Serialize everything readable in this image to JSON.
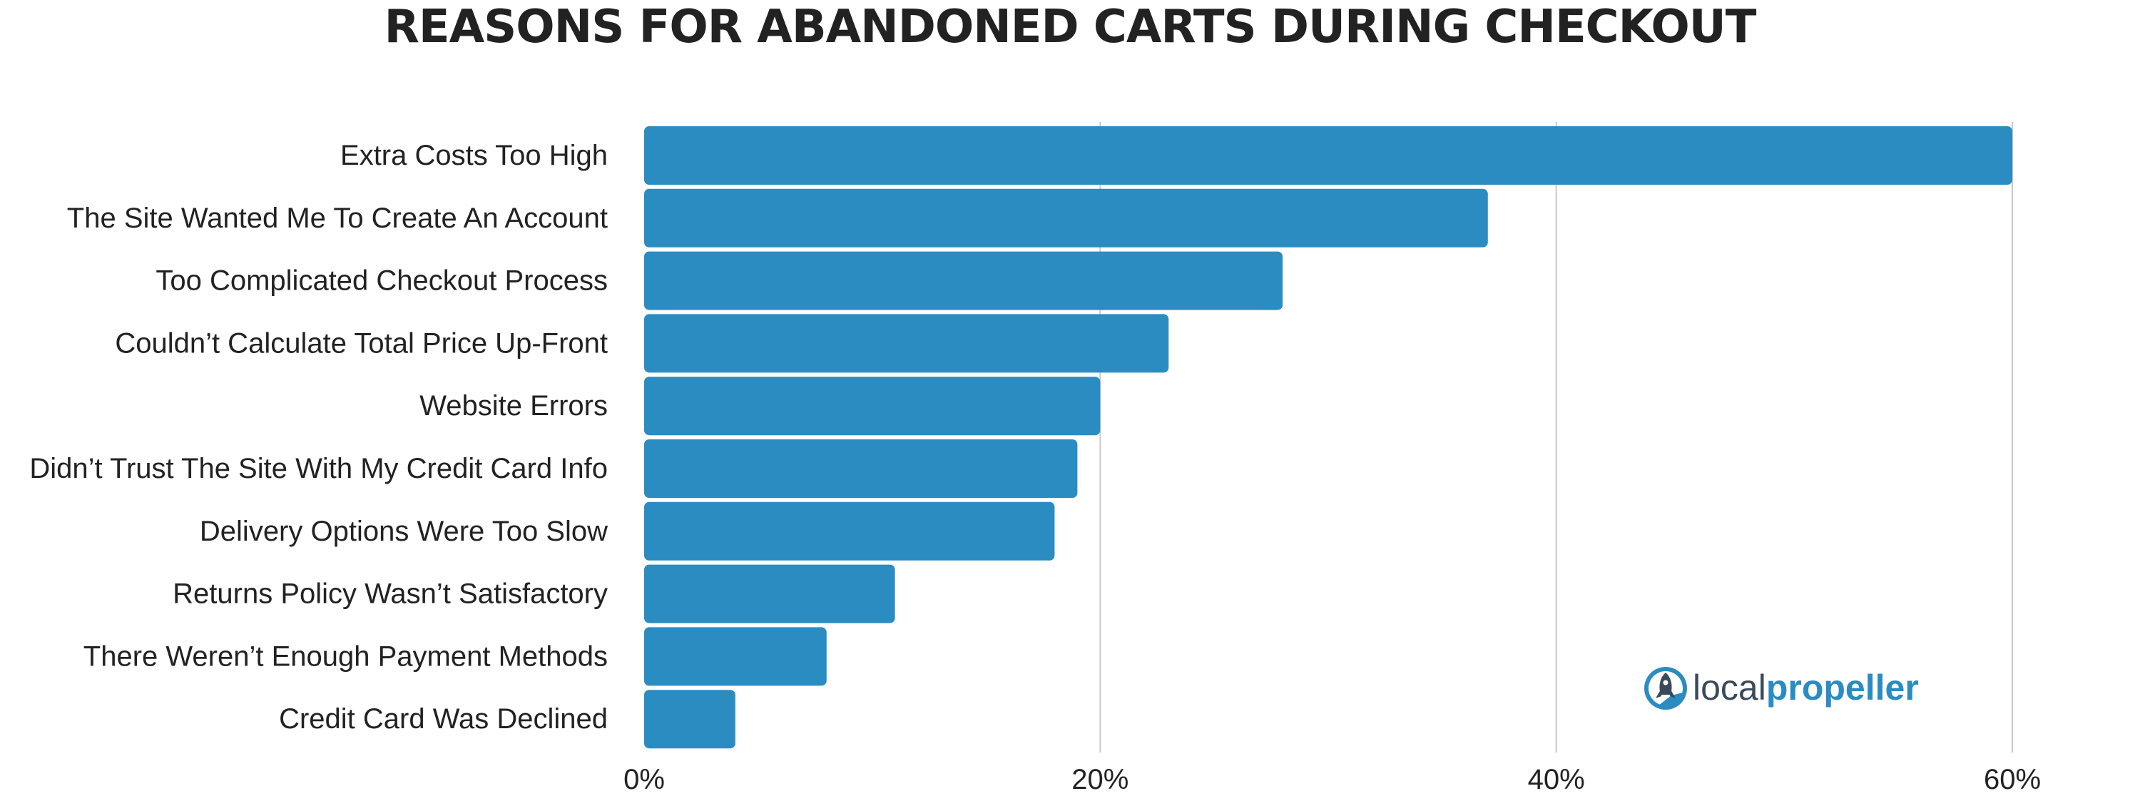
{
  "chart_data": {
    "type": "bar",
    "orientation": "horizontal",
    "title": "REASONS FOR ABANDONED CARTS DURING CHECKOUT",
    "categories": [
      "Extra Costs Too High",
      "The Site Wanted Me To Create An Account",
      "Too Complicated Checkout Process",
      "Couldn’t Calculate Total Price Up-Front",
      "Website Errors",
      "Didn’t Trust The Site With My Credit Card Info",
      "Delivery Options Were Too Slow",
      "Returns Policy Wasn’t Satisfactory",
      "There Weren’t Enough Payment Methods",
      "Credit Card Was Declined"
    ],
    "values": [
      60,
      37,
      28,
      23,
      20,
      19,
      18,
      11,
      8,
      4
    ],
    "unit": "%",
    "xlim": [
      0,
      60
    ],
    "xticks": [
      0,
      20,
      40,
      60
    ],
    "xtick_labels": [
      "0%",
      "20%",
      "40%",
      "60%"
    ],
    "grid": true,
    "bar_color": "#2A8CC1"
  },
  "branding": {
    "logo_text_light": "local",
    "logo_text_bold": "propeller",
    "logo_color_dark": "#3B4A5A",
    "logo_color_accent": "#2A8CC1"
  }
}
